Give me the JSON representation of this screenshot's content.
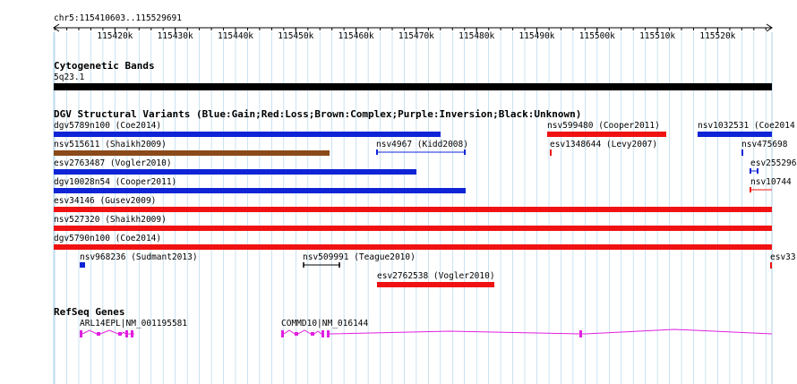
{
  "location": "chr5:115410603..115529691",
  "ruler": {
    "ticks": [
      "115420k",
      "115430k",
      "115440k",
      "115450k",
      "115460k",
      "115470k",
      "115480k",
      "115490k",
      "115500k",
      "115510k",
      "115520k"
    ]
  },
  "tracks": {
    "cytoband": {
      "title": "Cytogenetic Bands",
      "band_label": "5q23.1"
    },
    "dgv": {
      "title": "DGV Structural Variants (Blue:Gain;Red:Loss;Brown:Complex;Purple:Inversion;Black:Unknown)",
      "features": [
        {
          "label": "dgv5789n100 (Coe2014)"
        },
        {
          "label": "nsv599480 (Cooper2011)"
        },
        {
          "label": "nsv1032531 (Coe2014"
        },
        {
          "label": "nsv515611 (Shaikh2009)"
        },
        {
          "label": "nsv4967 (Kidd2008)"
        },
        {
          "label": "esv1348644 (Levy2007)"
        },
        {
          "label": "nsv475698"
        },
        {
          "label": "esv2763487 (Vogler2010)"
        },
        {
          "label": "esv255296"
        },
        {
          "label": "dgv10028n54 (Cooper2011)"
        },
        {
          "label": "nsv10744"
        },
        {
          "label": "esv34146 (Gusev2009)"
        },
        {
          "label": "nsv527320 (Shaikh2009)"
        },
        {
          "label": "dgv5790n100 (Coe2014)"
        },
        {
          "label": "nsv968236 (Sudmant2013)"
        },
        {
          "label": "nsv509991 (Teague2010)"
        },
        {
          "label": "esv33"
        },
        {
          "label": "esv2762538 (Vogler2010)"
        }
      ]
    },
    "refseq": {
      "title": "RefSeq Genes",
      "genes": [
        {
          "label": "ARL14EPL|NM_001195581"
        },
        {
          "label": "COMMD10|NM_016144"
        }
      ]
    }
  },
  "colors": {
    "gain": "#0f24d6",
    "loss": "#f01212",
    "complex": "#8a4a1a",
    "unknown": "#000000",
    "gene": "#e020e0",
    "grid": "#a8d0e8"
  }
}
